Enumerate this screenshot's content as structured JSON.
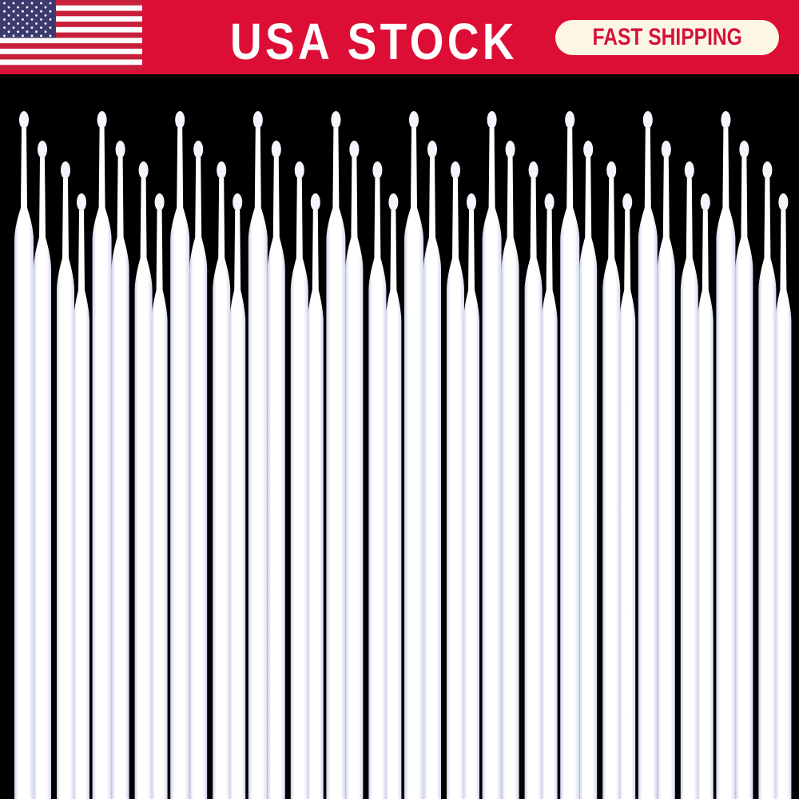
{
  "banner": {
    "headline": "USA STOCK",
    "badge": "FAST SHIPPING",
    "flag_icon": "us-flag-icon",
    "colors": {
      "banner": "#dd0e36",
      "badge_bg": "#fdf6e4",
      "badge_text": "#d4123a",
      "background": "#000000",
      "stick": "#ffffff"
    }
  },
  "product": {
    "description_visible": false,
    "groups": 10,
    "sticks_per_group": 4
  }
}
